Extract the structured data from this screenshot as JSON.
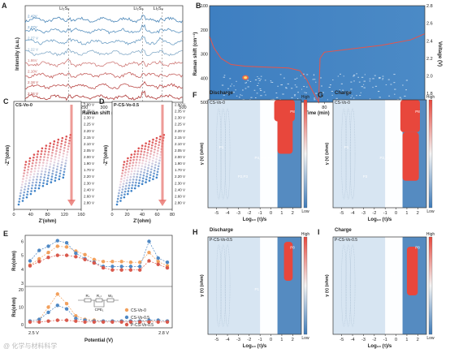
{
  "chart_data": [
    {
      "panel": "A",
      "type": "line",
      "xlabel": "Raman shift (cm⁻¹)",
      "ylabel": "Intensity (a.u.)",
      "xlim": [
        100,
        500
      ],
      "xticks": [
        "100",
        "150",
        "200",
        "250",
        "300",
        "350",
        "400",
        "450",
        "500"
      ],
      "annotations": [
        "Li₂S₈",
        "Li₂S₆",
        "Li₂S₄"
      ],
      "series": [
        {
          "name": "2.42V",
          "color": "#4a86b8"
        },
        {
          "name": "2.37V",
          "color": "#5b93c0"
        },
        {
          "name": "2.27 V",
          "color": "#6fa0c6"
        },
        {
          "name": "2.22 V",
          "color": "#86acc9"
        },
        {
          "name": "1.86V",
          "color": "#cf7a78"
        },
        {
          "name": "2.10V",
          "color": "#c5605e"
        },
        {
          "name": "2.18 V",
          "color": "#bb4a48"
        },
        {
          "name": "2.34 V",
          "color": "#ad3432"
        }
      ]
    },
    {
      "panel": "B",
      "type": "heatmap",
      "xlabel": "Time (min)",
      "ylabel": "Raman shift (cm⁻¹)",
      "y2label": "Voltage (V)",
      "xlim": [
        0,
        150
      ],
      "ylim": [
        100,
        500
      ],
      "y2lim": [
        1.7,
        2.8
      ],
      "xticks": [
        "0",
        "20",
        "40",
        "60",
        "80",
        "100",
        "120",
        "140"
      ],
      "yticks": [
        "100",
        "200",
        "300",
        "400",
        "500"
      ],
      "y2ticks": [
        "1.8",
        "2.0",
        "2.2",
        "2.4",
        "2.6",
        "2.8"
      ],
      "voltage_curve": {
        "time": [
          0,
          3,
          8,
          15,
          25,
          40,
          55,
          63,
          68,
          72,
          76,
          77,
          80,
          100,
          120,
          140,
          150
        ],
        "voltage": [
          2.45,
          2.32,
          2.2,
          2.13,
          2.11,
          2.1,
          2.09,
          2.06,
          1.95,
          1.82,
          1.7,
          2.2,
          2.27,
          2.31,
          2.35,
          2.41,
          2.48
        ]
      }
    },
    {
      "panel": "C",
      "type": "scatter",
      "title": "CS-Vo-0",
      "xlabel": "Z'(ohm)",
      "ylabel": "-Z''(ohm)",
      "xticks": [
        "0",
        "40",
        "80",
        "120",
        "160"
      ],
      "legend": [
        "2.80 V",
        "2.35 V",
        "2.30 V",
        "2.25 V",
        "2.20 V",
        "2.15 V",
        "2.10 V",
        "2.05 V",
        "2.00 V",
        "1.90 V",
        "1.70 V",
        "2.20 V",
        "2.30 V",
        "2.40 V",
        "2.60 V",
        "2.80 V"
      ]
    },
    {
      "panel": "D",
      "type": "scatter",
      "title": "P-CS-Vo-0.5",
      "xlabel": "Z'(ohm)",
      "ylabel": "-Z''(ohm)",
      "xticks": [
        "0",
        "20",
        "40",
        "60",
        "80"
      ],
      "legend": [
        "2.80 V",
        "2.35 V",
        "2.30 V",
        "2.25 V",
        "2.20 V",
        "2.15 V",
        "2.10 V",
        "2.05 V",
        "2.00 V",
        "1.90 V",
        "1.70 V",
        "2.20 V",
        "2.30 V",
        "2.40 V",
        "2.60 V",
        "2.80 V"
      ]
    },
    {
      "panel": "E",
      "type": "line",
      "xlabel": "Potential (V)",
      "ylabel_top": "Ro(ohm)",
      "ylabel_bottom": "Rs(ohm)",
      "xstart_label": "2.5 V",
      "xend_label": "2.8 V",
      "top_yticks": [
        "3",
        "4",
        "5",
        "6"
      ],
      "bottom_yticks": [
        "0",
        "10",
        "20"
      ],
      "circuit_labels": [
        "Rₛ",
        "R꜀ₜ",
        "Wₒ",
        "CPE₁"
      ],
      "series": [
        {
          "name": "CS-Vo-0",
          "color": "#f2a05c",
          "ro": [
            4.3,
            4.75,
            5.2,
            5.65,
            5.6,
            5.3,
            5.05,
            4.7,
            4.55,
            4.55,
            4.55,
            4.5,
            4.5,
            5.2,
            4.55,
            4.25
          ],
          "rs": [
            2,
            3,
            10,
            17.5,
            12,
            5,
            3,
            2.5,
            2,
            2,
            2,
            2,
            2,
            2,
            2.5,
            2
          ]
        },
        {
          "name": "CS-Vo-0.5",
          "color": "#4f88c4",
          "ro": [
            4.6,
            5.35,
            5.65,
            6.05,
            5.9,
            5.15,
            4.75,
            4.5,
            4.2,
            4.2,
            4.2,
            4.2,
            4.2,
            6.0,
            4.8,
            4.5
          ],
          "rs": [
            2,
            3,
            7,
            11,
            9,
            3.5,
            2.5,
            2,
            2,
            2,
            2,
            2,
            2,
            2.5,
            2.5,
            2
          ]
        },
        {
          "name": "P-CS-Vo-0.5",
          "color": "#d9594c",
          "ro": [
            4.25,
            4.55,
            4.85,
            5.0,
            5.0,
            4.9,
            4.7,
            4.45,
            4.1,
            3.95,
            3.95,
            3.95,
            3.95,
            4.6,
            4.35,
            4.1
          ],
          "rs": [
            1.5,
            1.5,
            2,
            2.5,
            2.5,
            2,
            1.5,
            1.5,
            1.5,
            1.5,
            1.5,
            1.5,
            1.5,
            1.5,
            1.5,
            1.5
          ]
        }
      ]
    },
    {
      "panel": "F",
      "type": "heatmap",
      "title": "Discharge",
      "subtitle": "CS-Vo-0",
      "xlabel": "Log₁₀ (τ)/s",
      "ylabel": "γ (τ) (ohm)",
      "xticks": [
        "-5",
        "-4",
        "-3",
        "-2",
        "-1",
        "0",
        "1",
        "2"
      ],
      "colorbar": {
        "high": "High",
        "low": "Low"
      },
      "peak_labels": [
        "P1",
        "P2,P3",
        "P4, P5, P6",
        "P7",
        "P8"
      ]
    },
    {
      "panel": "G",
      "type": "heatmap",
      "title": "Charge",
      "subtitle": "CS-Vo-0",
      "xlabel": "Log₁₀ (τ)/s",
      "ylabel": "γ (τ) (ohm)",
      "xticks": [
        "-5",
        "-4",
        "-3",
        "-2",
        "-1",
        "0",
        "1",
        "2"
      ],
      "colorbar": {
        "high": "High",
        "low": "Low"
      },
      "peak_labels": [
        "P1",
        "P3",
        "P2, P6",
        "P7",
        "P8"
      ]
    },
    {
      "panel": "H",
      "type": "heatmap",
      "title": "Discharge",
      "subtitle": "P-CS-Vo-0.5",
      "xlabel": "Log₁₀ (τ)/s",
      "ylabel": "γ (τ) (ohm)",
      "xticks": [
        "-5",
        "-4",
        "-3",
        "-2",
        "-1",
        "0",
        "1",
        "2"
      ],
      "colorbar": {
        "high": "High",
        "low": "Low"
      },
      "peak_labels": [
        "P1",
        "P7",
        "P8"
      ]
    },
    {
      "panel": "I",
      "type": "heatmap",
      "title": "Charge",
      "subtitle": "P-CS-Vo-0.5",
      "xlabel": "Log₁₀ (τ)/s",
      "ylabel": "γ (τ) (ohm)",
      "xticks": [
        "-5",
        "-4",
        "-3",
        "-2",
        "-1",
        "0",
        "1",
        "2"
      ],
      "colorbar": {
        "high": "High",
        "low": "Low"
      },
      "peak_labels": [
        "P7",
        "P8"
      ]
    }
  ],
  "panel_letters": [
    "A",
    "B",
    "C",
    "D",
    "E",
    "F",
    "G",
    "H",
    "I"
  ],
  "watermark": "@ 化学与材料科学"
}
